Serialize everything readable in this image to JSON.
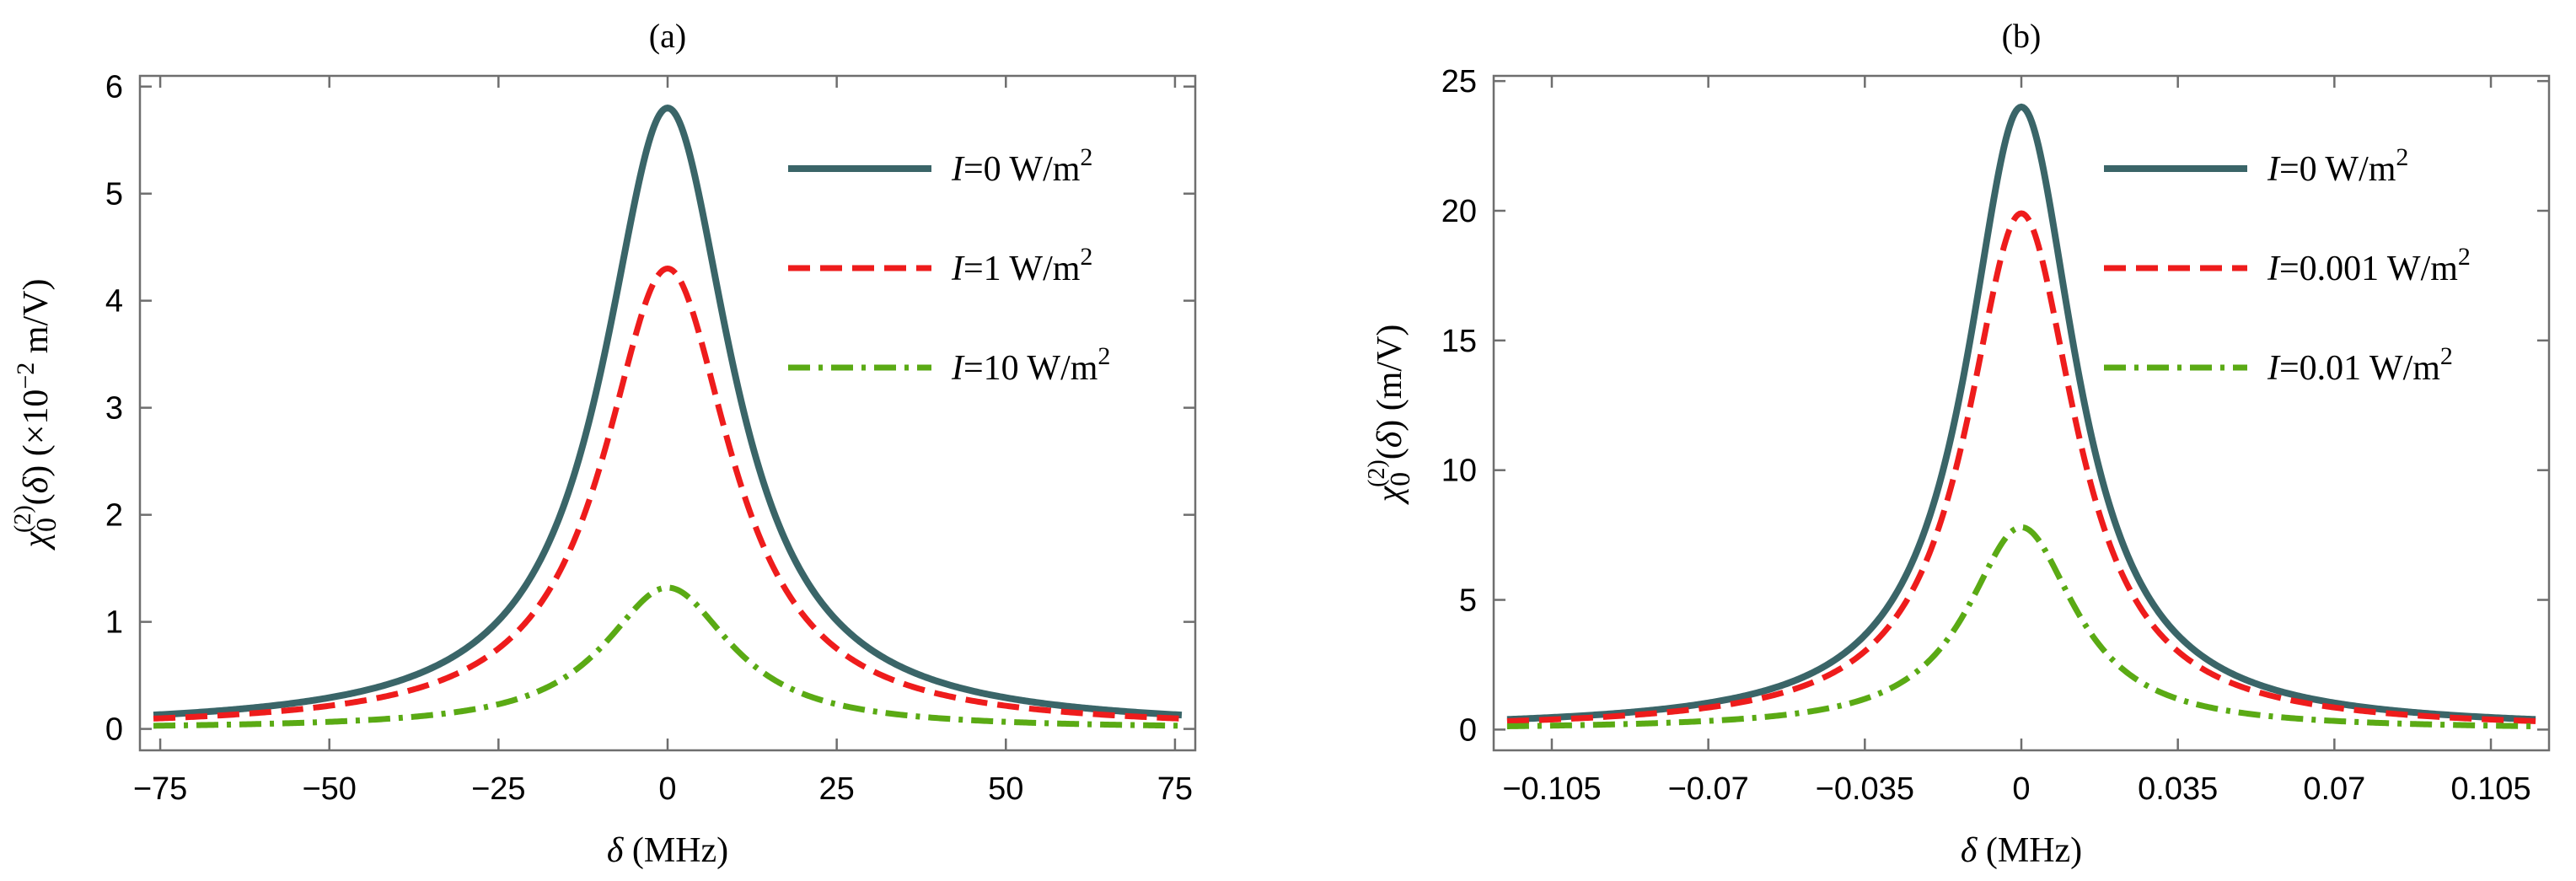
{
  "chart_data": [
    {
      "type": "line",
      "title": "(a)",
      "xlabel": "δ (MHz)",
      "ylabel": "χ0(2)(δ) (×10−2 m/V)",
      "xlim": [
        -78,
        78
      ],
      "ylim": [
        -0.2,
        6.1
      ],
      "xticks": [
        -75,
        -50,
        -25,
        0,
        25,
        50,
        75
      ],
      "xtick_labels": [
        "−75",
        "−50",
        "−25",
        "0",
        "25",
        "50",
        "75"
      ],
      "yticks": [
        0,
        1,
        2,
        3,
        4,
        5,
        6
      ],
      "ytick_labels": [
        "0",
        "1",
        "2",
        "3",
        "4",
        "5",
        "6"
      ],
      "lineshape": "lorentzian",
      "half_width": 11.5,
      "x_extent": [
        -76,
        76
      ],
      "legend_position": "top-right",
      "series": [
        {
          "name": "I=0 W/m2",
          "label_var": "I",
          "label_rest": "=0 W/m",
          "label_sup": "2",
          "peak": 5.8,
          "color": "#3a6568",
          "style": "solid"
        },
        {
          "name": "I=1 W/m2",
          "label_var": "I",
          "label_rest": "=1 W/m",
          "label_sup": "2",
          "peak": 4.3,
          "color": "#ee1c1c",
          "style": "dashed"
        },
        {
          "name": "I=10 W/m2",
          "label_var": "I",
          "label_rest": "=10 W/m",
          "label_sup": "2",
          "peak": 1.32,
          "color": "#5aaa14",
          "style": "dashdot"
        }
      ]
    },
    {
      "type": "line",
      "title": "(b)",
      "xlabel": "δ (MHz)",
      "ylabel": "χ0(2)(δ) (m/V)",
      "xlim": [
        -0.118,
        0.118
      ],
      "ylim": [
        -0.8,
        25.2
      ],
      "xticks": [
        -0.105,
        -0.07,
        -0.035,
        0,
        0.035,
        0.07,
        0.105
      ],
      "xtick_labels": [
        "−0.105",
        "−0.07",
        "−0.035",
        "0",
        "0.035",
        "0.07",
        "0.105"
      ],
      "yticks": [
        0,
        5,
        10,
        15,
        20,
        25
      ],
      "ytick_labels": [
        "0",
        "5",
        "10",
        "15",
        "20",
        "25"
      ],
      "lineshape": "lorentzian",
      "half_width": 0.0148,
      "x_extent": [
        -0.115,
        0.115
      ],
      "legend_position": "top-right",
      "series": [
        {
          "name": "I=0 W/m2",
          "label_var": "I",
          "label_rest": "=0 W/m",
          "label_sup": "2",
          "peak": 24.0,
          "color": "#3a6568",
          "style": "solid"
        },
        {
          "name": "I=0.001 W/m2",
          "label_var": "I",
          "label_rest": "=0.001 W/m",
          "label_sup": "2",
          "peak": 19.9,
          "color": "#ee1c1c",
          "style": "dashed"
        },
        {
          "name": "I=0.01 W/m2",
          "label_var": "I",
          "label_rest": "=0.01 W/m",
          "label_sup": "2",
          "peak": 7.8,
          "color": "#5aaa14",
          "style": "dashdot"
        }
      ]
    }
  ]
}
